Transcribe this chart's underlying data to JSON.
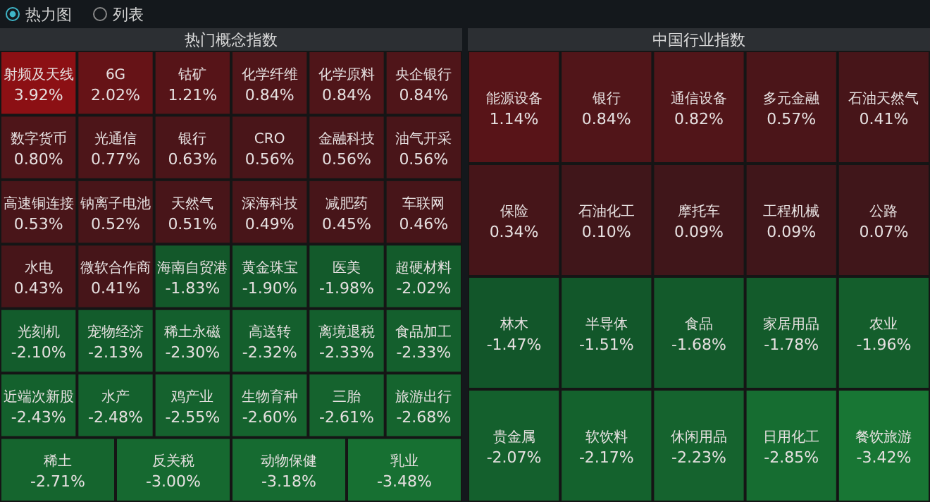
{
  "chart_data": [
    {
      "type": "other",
      "title": "热门概念指数",
      "annotations": [
        "热力图",
        "列表"
      ],
      "categories": [
        "射频及天线",
        "6G",
        "钴矿",
        "化学纤维",
        "化学原料",
        "央企银行",
        "数字货币",
        "光通信",
        "银行",
        "CRO",
        "金融科技",
        "油气开采",
        "高速铜连接",
        "钠离子电池",
        "天然气",
        "深海科技",
        "减肥药",
        "车联网",
        "水电",
        "微软合作商",
        "海南自贸港",
        "黄金珠宝",
        "医美",
        "超硬材料",
        "光刻机",
        "宠物经济",
        "稀土永磁",
        "高送转",
        "离境退税",
        "食品加工",
        "近端次新股",
        "水产",
        "鸡产业",
        "生物育种",
        "三胎",
        "旅游出行",
        "稀土",
        "反关税",
        "动物保健",
        "乳业"
      ],
      "values": [
        3.92,
        2.02,
        1.21,
        0.84,
        0.84,
        0.84,
        0.8,
        0.77,
        0.63,
        0.56,
        0.56,
        0.56,
        0.53,
        0.52,
        0.51,
        0.49,
        0.45,
        0.46,
        0.43,
        0.41,
        -1.83,
        -1.9,
        -1.98,
        -2.02,
        -2.1,
        -2.13,
        -2.3,
        -2.32,
        -2.33,
        -2.33,
        -2.43,
        -2.48,
        -2.55,
        -2.6,
        -2.61,
        -2.68,
        -2.71,
        -3.0,
        -3.18,
        -3.48
      ],
      "value_labels": [
        "3.92%",
        "2.02%",
        "1.21%",
        "0.84%",
        "0.84%",
        "0.84%",
        "0.80%",
        "0.77%",
        "0.63%",
        "0.56%",
        "0.56%",
        "0.56%",
        "0.53%",
        "0.52%",
        "0.51%",
        "0.49%",
        "0.45%",
        "0.46%",
        "0.43%",
        "0.41%",
        "-1.83%",
        "-1.90%",
        "-1.98%",
        "-2.02%",
        "-2.10%",
        "-2.13%",
        "-2.30%",
        "-2.32%",
        "-2.33%",
        "-2.33%",
        "-2.43%",
        "-2.48%",
        "-2.55%",
        "-2.60%",
        "-2.61%",
        "-2.68%",
        "-2.71%",
        "-3.00%",
        "-3.18%",
        "-3.48%"
      ]
    },
    {
      "type": "other",
      "title": "中国行业指数",
      "categories": [
        "能源设备",
        "银行",
        "通信设备",
        "多元金融",
        "石油天然气",
        "保险",
        "石油化工",
        "摩托车",
        "工程机械",
        "公路",
        "林木",
        "半导体",
        "食品",
        "家居用品",
        "农业",
        "贵金属",
        "软饮料",
        "休闲用品",
        "日用化工",
        "餐饮旅游"
      ],
      "values": [
        1.14,
        0.84,
        0.82,
        0.57,
        0.41,
        0.34,
        0.1,
        0.09,
        0.09,
        0.07,
        -1.47,
        -1.51,
        -1.68,
        -1.78,
        -1.96,
        -2.07,
        -2.17,
        -2.23,
        -2.85,
        -3.42
      ],
      "value_labels": [
        "1.14%",
        "0.84%",
        "0.82%",
        "0.57%",
        "0.41%",
        "0.34%",
        "0.10%",
        "0.09%",
        "0.09%",
        "0.07%",
        "-1.47%",
        "-1.51%",
        "-1.68%",
        "-1.78%",
        "-1.96%",
        "-2.07%",
        "-2.17%",
        "-2.23%",
        "-2.85%",
        "-3.42%"
      ]
    }
  ]
}
